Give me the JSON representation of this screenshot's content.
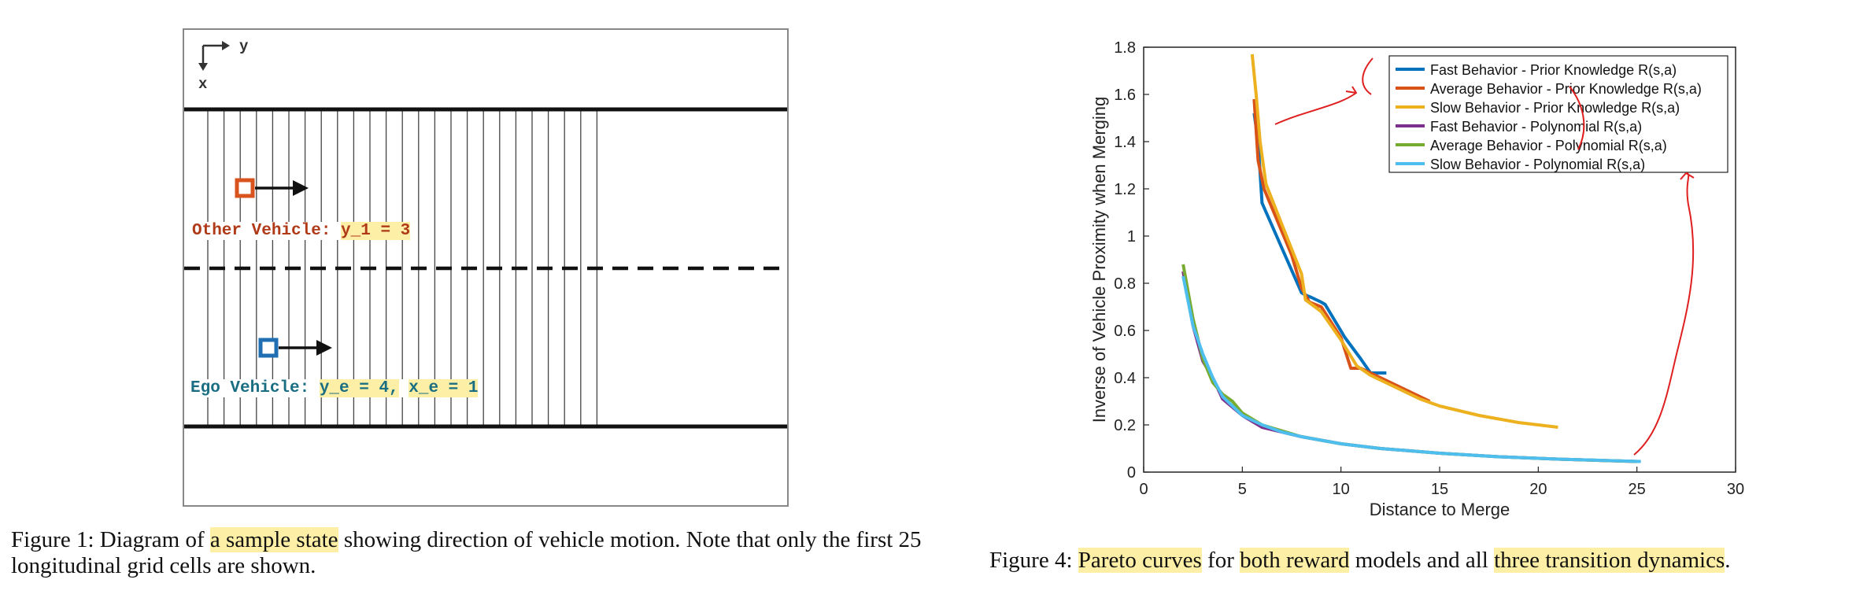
{
  "figure1": {
    "axis_y": "y",
    "axis_x": "x",
    "other_label_prefix": "Other Vehicle: ",
    "other_label_var": "y_1 = 3",
    "ego_label_prefix": "Ego Vehicle: ",
    "ego_label_var1": "y_e = 4,",
    "ego_label_var2": "x_e = 1",
    "colors": {
      "other": "#d9531e",
      "ego": "#1f6fb2",
      "other_text": "#c0392b",
      "ego_text": "#1a7a8c"
    },
    "caption_a": "Figure 1: Diagram of ",
    "caption_hl": "a sample state",
    "caption_b": " showing direction of vehicle motion. Note that only the first 25",
    "caption_c": "longitudinal grid cells are shown."
  },
  "figure4": {
    "caption_a": "Figure 4: ",
    "caption_hl1": "Pareto curves",
    "caption_b": " for ",
    "caption_hl2": "both reward",
    "caption_c": " models and all ",
    "caption_hl3": "three transition dynamics",
    "caption_d": ".",
    "ylabel_a": "Inverse of Vehicle ",
    "ylabel_hl": "Proximity",
    "ylabel_b": " when Merging"
  },
  "chart_data": {
    "type": "line",
    "xlabel": "Distance to Merge",
    "xlim": [
      0,
      30
    ],
    "ylim": [
      0,
      1.8
    ],
    "xticks": [
      0,
      5,
      10,
      15,
      20,
      25,
      30
    ],
    "yticks": [
      0,
      0.2,
      0.4,
      0.6,
      0.8,
      1,
      1.2,
      1.4,
      1.6,
      1.8
    ],
    "legend_position": "top-right",
    "series": [
      {
        "name": "Fast Behavior - Prior Knowledge R(s,a)",
        "color": "#0072bd",
        "x": [
          5.6,
          5.8,
          6.0,
          8.0,
          8.2,
          8.5,
          9.0,
          9.2,
          10.2,
          11.0,
          11.5,
          12.3
        ],
        "y": [
          1.52,
          1.4,
          1.14,
          0.76,
          0.75,
          0.74,
          0.72,
          0.71,
          0.57,
          0.48,
          0.42,
          0.42
        ]
      },
      {
        "name": "Average Behavior - Prior Knowledge R(s,a)",
        "color": "#d95319",
        "x": [
          5.6,
          5.8,
          6.1,
          7.5,
          8.0,
          8.4,
          9.0,
          10.0,
          10.5,
          11.0,
          12.0,
          13.0,
          14.0,
          14.5
        ],
        "y": [
          1.58,
          1.32,
          1.2,
          0.92,
          0.78,
          0.72,
          0.7,
          0.57,
          0.44,
          0.44,
          0.4,
          0.36,
          0.32,
          0.3
        ]
      },
      {
        "name": "Slow Behavior - Prior Knowledge R(s,a)",
        "color": "#edb120",
        "x": [
          5.5,
          5.7,
          5.9,
          6.2,
          7.0,
          8.0,
          8.2,
          9.0,
          10.0,
          10.8,
          11.5,
          12.5,
          14.0,
          15.0,
          17.0,
          19.0,
          21.0
        ],
        "y": [
          1.77,
          1.6,
          1.4,
          1.22,
          1.05,
          0.84,
          0.73,
          0.68,
          0.56,
          0.45,
          0.41,
          0.37,
          0.31,
          0.28,
          0.24,
          0.21,
          0.19
        ]
      },
      {
        "name": "Fast Behavior - Polynomial R(s,a)",
        "color": "#7e2f8e",
        "x": [
          2.0,
          2.5,
          3.0,
          3.5,
          4.0,
          5.0,
          6.0,
          8.0,
          10.0,
          12.0,
          15.0,
          18.0,
          21.0,
          25.0
        ],
        "y": [
          0.85,
          0.62,
          0.47,
          0.4,
          0.31,
          0.24,
          0.19,
          0.15,
          0.12,
          0.1,
          0.08,
          0.065,
          0.055,
          0.045
        ]
      },
      {
        "name": "Average Behavior - Polynomial R(s,a)",
        "color": "#77ac30",
        "x": [
          2.0,
          2.5,
          3.0,
          3.5,
          4.0,
          4.5,
          5.0,
          6.0,
          8.0,
          10.0,
          12.0,
          15.0,
          18.0,
          21.0,
          25.0
        ],
        "y": [
          0.88,
          0.65,
          0.48,
          0.38,
          0.33,
          0.3,
          0.25,
          0.2,
          0.15,
          0.12,
          0.1,
          0.08,
          0.065,
          0.055,
          0.045
        ]
      },
      {
        "name": "Slow Behavior - Polynomial R(s,a)",
        "color": "#4dbeee",
        "x": [
          2.0,
          2.5,
          3.0,
          3.5,
          4.0,
          5.0,
          6.0,
          7.0,
          8.0,
          10.0,
          12.0,
          15.0,
          18.0,
          21.0,
          25.2
        ],
        "y": [
          0.83,
          0.62,
          0.5,
          0.4,
          0.32,
          0.24,
          0.2,
          0.17,
          0.15,
          0.12,
          0.1,
          0.08,
          0.065,
          0.055,
          0.045
        ]
      }
    ]
  }
}
